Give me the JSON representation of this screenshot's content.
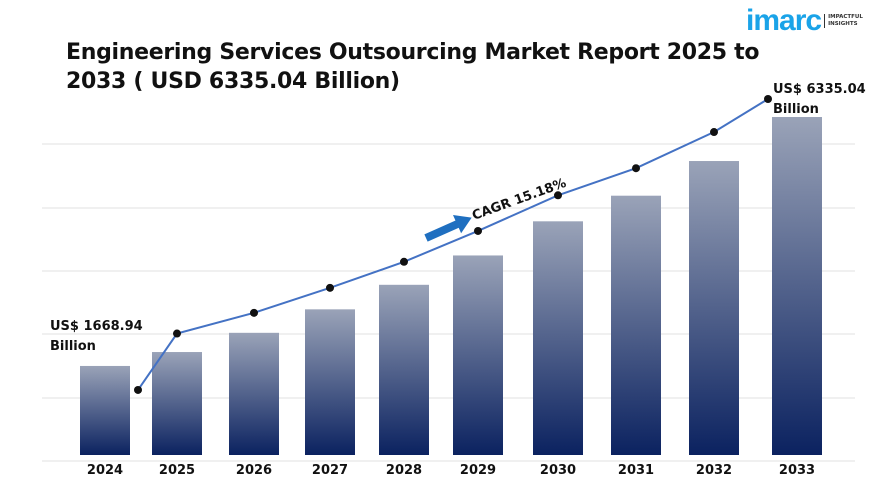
{
  "title": "Engineering Services Outsourcing Market Report 2025 to 2033 ( USD 6335.04 Billion)",
  "logo": {
    "brand": "imarc",
    "tagline": "IMPACTFUL INSIGHTS"
  },
  "colors": {
    "bar_top": "#9aa3b8",
    "bar_bottom": "#0b2260",
    "line": "#4472c4",
    "marker": "#111111",
    "arrow": "#1f6fc0",
    "logo": "#1aa3e8"
  },
  "chart_data": {
    "type": "bar",
    "categories": [
      "2024",
      "2025",
      "2026",
      "2027",
      "2028",
      "2029",
      "2030",
      "2031",
      "2032",
      "2033"
    ],
    "values": [
      1668.94,
      1930,
      2290,
      2730,
      3190,
      3740,
      4380,
      4860,
      5510,
      6335.04
    ],
    "overlay": "line with markers following bar values",
    "ylim": [
      0,
      7400
    ],
    "grid": true,
    "annotations": {
      "start_value": "US$ 1668.94",
      "start_unit": "Billion",
      "end_value": "US$ 6335.04",
      "end_unit": "Billion",
      "cagr": "CAGR 15.18%"
    }
  }
}
